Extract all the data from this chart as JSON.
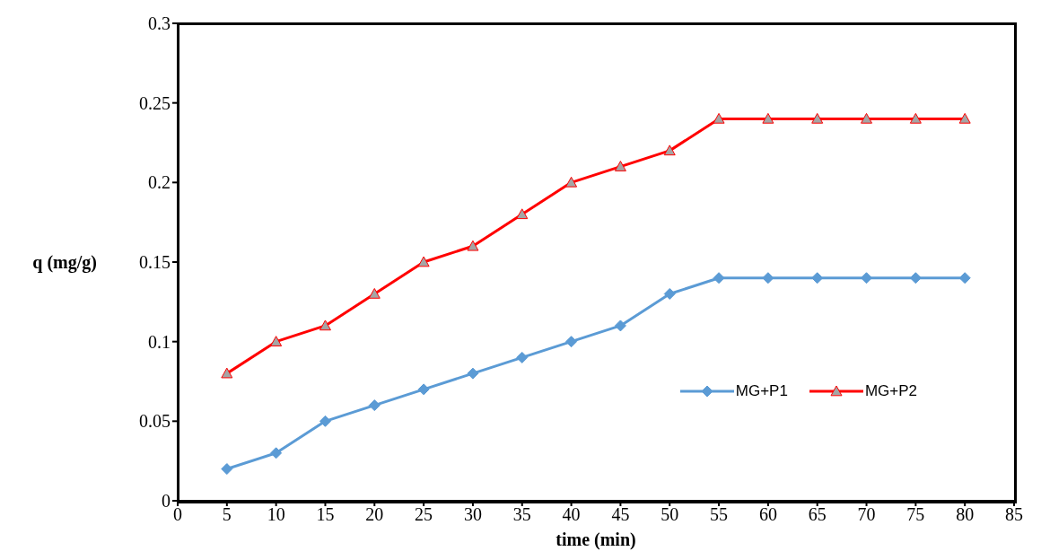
{
  "chart_data": {
    "type": "line",
    "xlabel": "time (min)",
    "ylabel": "q (mg/g)",
    "x": [
      5,
      10,
      15,
      20,
      25,
      30,
      35,
      40,
      45,
      50,
      55,
      60,
      65,
      70,
      75,
      80
    ],
    "series": [
      {
        "name": "MG+P1",
        "color": "#5b9bd5",
        "marker": "diamond",
        "values": [
          0.02,
          0.03,
          0.05,
          0.06,
          0.07,
          0.08,
          0.09,
          0.1,
          0.11,
          0.13,
          0.14,
          0.14,
          0.14,
          0.14,
          0.14,
          0.14
        ]
      },
      {
        "name": "MG+P2",
        "color": "#ff0000",
        "marker": "triangle",
        "values": [
          0.08,
          0.1,
          0.11,
          0.13,
          0.15,
          0.16,
          0.18,
          0.2,
          0.21,
          0.22,
          0.24,
          0.24,
          0.24,
          0.24,
          0.24,
          0.24
        ]
      }
    ],
    "xlim": [
      0,
      85
    ],
    "xticks": [
      0,
      5,
      10,
      15,
      20,
      25,
      30,
      35,
      40,
      45,
      50,
      55,
      60,
      65,
      70,
      75,
      80,
      85
    ],
    "ylim": [
      0,
      0.3
    ],
    "yticks": [
      0,
      0.05,
      0.1,
      0.15,
      0.2,
      0.25,
      0.3
    ],
    "legend": "bottom right",
    "line_style": "solid"
  }
}
